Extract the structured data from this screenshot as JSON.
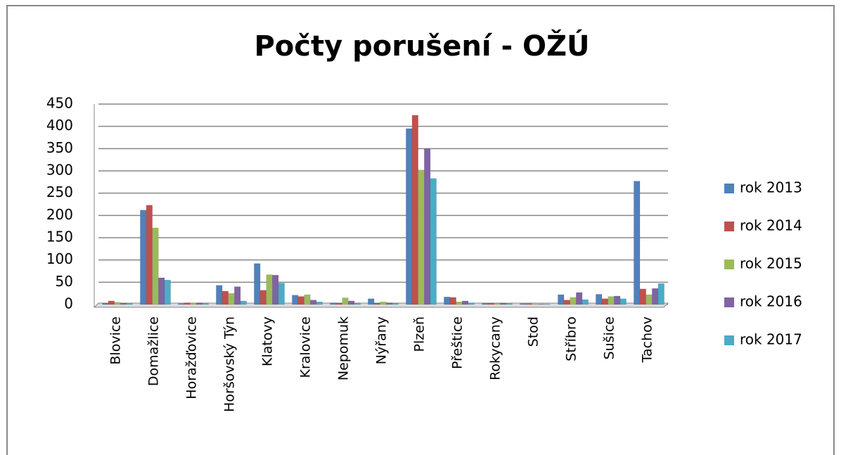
{
  "chart_data": {
    "type": "bar",
    "title": "Počty porušení - OŽÚ",
    "categories": [
      "Blovice",
      "Domažlice",
      "Horažďovice",
      "Horšovský Týn",
      "Klatovy",
      "Kralovice",
      "Nepomuk",
      "Nýřany",
      "Plzeň",
      "Přeštice",
      "Rokycany",
      "Stod",
      "Stříbro",
      "Sušice",
      "Tachov"
    ],
    "series": [
      {
        "name": "rok 2013",
        "color": "#4f81bd",
        "values": [
          3,
          212,
          2,
          43,
          92,
          21,
          4,
          13,
          395,
          17,
          3,
          2,
          22,
          23,
          277
        ]
      },
      {
        "name": "rok 2014",
        "color": "#c0504d",
        "values": [
          8,
          223,
          4,
          30,
          32,
          18,
          3,
          3,
          425,
          16,
          3,
          2,
          10,
          13,
          35
        ]
      },
      {
        "name": "rok 2015",
        "color": "#9bbb59",
        "values": [
          5,
          172,
          4,
          25,
          67,
          22,
          15,
          6,
          302,
          6,
          3,
          1,
          16,
          18,
          22
        ]
      },
      {
        "name": "rok 2016",
        "color": "#8064a2",
        "values": [
          3,
          60,
          4,
          40,
          66,
          10,
          8,
          4,
          350,
          8,
          3,
          1,
          27,
          19,
          36
        ]
      },
      {
        "name": "rok 2017",
        "color": "#4bacc6",
        "values": [
          2,
          55,
          3,
          8,
          48,
          6,
          3,
          3,
          283,
          4,
          2,
          1,
          11,
          13,
          47
        ]
      }
    ],
    "ylim": [
      0,
      450
    ],
    "yticks": [
      0,
      50,
      100,
      150,
      200,
      250,
      300,
      350,
      400,
      450
    ],
    "grid": true,
    "legend": "right"
  }
}
